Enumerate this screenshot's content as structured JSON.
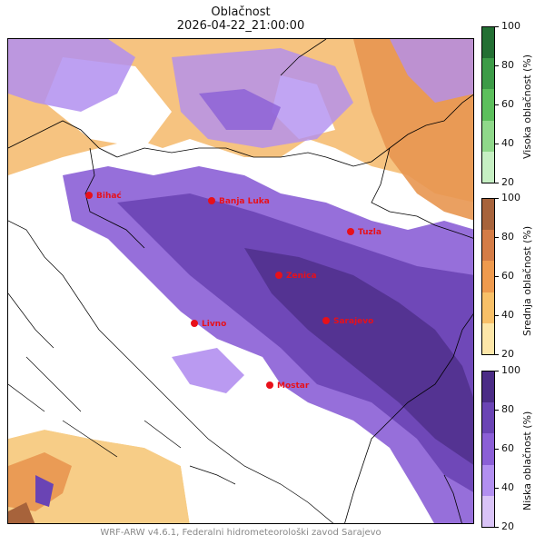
{
  "title": "Oblačnost",
  "subtitle": "2026-04-22_21:00:00",
  "footer": "WRF-ARW v4.6.1, Federalni hidrometeorološki zavod Sarajevo",
  "cities": [
    {
      "name": "Bihać"
    },
    {
      "name": "Banja Luka"
    },
    {
      "name": "Tuzla"
    },
    {
      "name": "Zenica"
    },
    {
      "name": "Livno"
    },
    {
      "name": "Sarajevo"
    },
    {
      "name": "Mostar"
    }
  ],
  "colorbars": [
    {
      "label": "Visoka oblačnost (%)",
      "ticks": [
        "100",
        "80",
        "60",
        "40",
        "20"
      ],
      "colors": [
        "#c6efc3",
        "#8fd88a",
        "#5cbf5c",
        "#3c9b47",
        "#236f33"
      ]
    },
    {
      "label": "Srednja oblačnost (%)",
      "ticks": [
        "100",
        "80",
        "60",
        "40",
        "20"
      ],
      "colors": [
        "#fde6a8",
        "#f8c068",
        "#ee9a4e",
        "#d47c46",
        "#a7633b"
      ]
    },
    {
      "label": "Niska oblačnost (%)",
      "ticks": [
        "100",
        "80",
        "60",
        "40",
        "20"
      ],
      "colors": [
        "#d9c3f7",
        "#b28ff0",
        "#8b5fd6",
        "#6a44b4",
        "#4b2c86"
      ]
    }
  ]
}
